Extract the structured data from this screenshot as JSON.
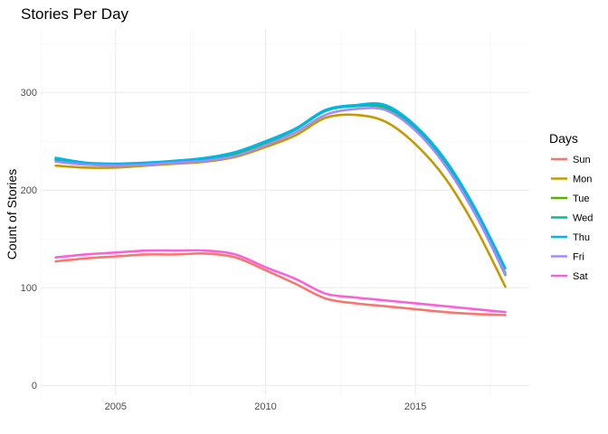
{
  "chart_data": {
    "type": "line",
    "title": "Stories Per Day",
    "xlabel": "",
    "ylabel": "Count of Stories",
    "xlim": [
      2002.5,
      2018.8
    ],
    "ylim": [
      -10,
      365
    ],
    "x_ticks": [
      2005,
      2010,
      2015
    ],
    "y_ticks": [
      0,
      100,
      200,
      300
    ],
    "grid": true,
    "legend": {
      "title": "Days",
      "position": "right"
    },
    "x": [
      2003,
      2004,
      2005,
      2006,
      2007,
      2008,
      2009,
      2010,
      2011,
      2012,
      2013,
      2014,
      2015,
      2016,
      2017,
      2018
    ],
    "series": [
      {
        "name": "Sun",
        "color": "#F8766D",
        "values": [
          127,
          130,
          132,
          134,
          134,
          135,
          131,
          118,
          104,
          89,
          84,
          81,
          78,
          75,
          73,
          72
        ]
      },
      {
        "name": "Mon",
        "color": "#C49A00",
        "values": [
          225,
          223,
          223,
          225,
          227,
          229,
          234,
          244,
          256,
          274,
          277,
          270,
          247,
          212,
          162,
          101
        ]
      },
      {
        "name": "Tue",
        "color": "#53B400",
        "values": [
          231,
          227,
          226,
          227,
          229,
          232,
          237,
          248,
          262,
          281,
          286,
          284,
          262,
          226,
          176,
          113
        ]
      },
      {
        "name": "Wed",
        "color": "#00C094",
        "values": [
          231,
          227,
          226,
          227,
          230,
          232,
          238,
          249,
          262,
          281,
          286,
          285,
          264,
          228,
          178,
          115
        ]
      },
      {
        "name": "Thu",
        "color": "#00B6EB",
        "values": [
          233,
          228,
          227,
          228,
          230,
          233,
          239,
          250,
          263,
          282,
          287,
          287,
          266,
          231,
          181,
          120
        ]
      },
      {
        "name": "Fri",
        "color": "#A58AFF",
        "values": [
          229,
          226,
          225,
          226,
          228,
          230,
          235,
          246,
          259,
          277,
          283,
          282,
          261,
          225,
          175,
          114
        ]
      },
      {
        "name": "Sat",
        "color": "#FB61D7",
        "values": [
          131,
          134,
          136,
          138,
          138,
          138,
          134,
          121,
          109,
          94,
          90,
          87,
          84,
          81,
          78,
          75
        ]
      }
    ]
  }
}
